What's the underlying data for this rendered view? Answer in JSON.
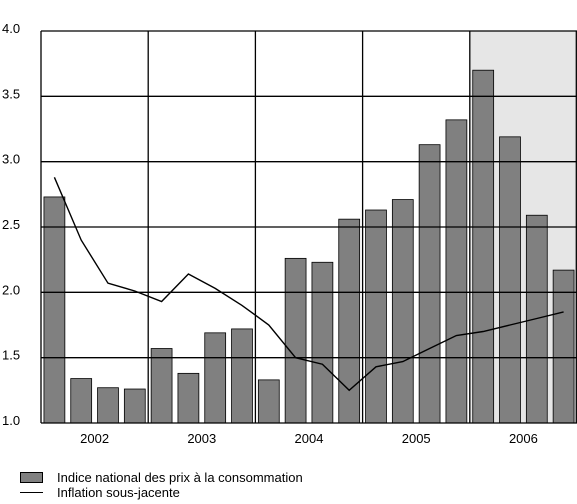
{
  "chart_data": {
    "type": "bar",
    "ylim": [
      1.0,
      4.0
    ],
    "yticks": [
      "1.0",
      "1.5",
      "2.0",
      "2.5",
      "3.0",
      "3.5",
      "4.0"
    ],
    "year_labels": [
      "2002",
      "2003",
      "2004",
      "2005",
      "2006"
    ],
    "shaded_region": {
      "from_quarter": 16,
      "to_quarter": 20
    },
    "colors": {
      "bar": "#808080",
      "line": "#000000",
      "shade": "#e6e6e6",
      "grid": "#000000"
    },
    "series": [
      {
        "name": "Indice national des prix à la consommation",
        "type": "bar",
        "values": [
          2.73,
          1.34,
          1.27,
          1.26,
          1.57,
          1.38,
          1.69,
          1.72,
          1.33,
          2.26,
          2.23,
          2.56,
          2.63,
          2.71,
          3.13,
          3.32,
          3.7,
          3.19,
          2.59,
          2.17
        ]
      },
      {
        "name": "Inflation sous-jacente",
        "type": "line",
        "values": [
          2.88,
          2.4,
          2.07,
          2.01,
          1.93,
          2.14,
          2.03,
          1.9,
          1.75,
          1.5,
          1.45,
          1.25,
          1.43,
          1.47,
          1.57,
          1.67,
          1.7,
          1.75,
          1.8,
          1.85
        ]
      }
    ]
  },
  "legend": {
    "items": [
      {
        "label": "Indice national des prix à la consommation",
        "icon": "bar-swatch"
      },
      {
        "label": "Inflation sous-jacente",
        "icon": "line-swatch"
      }
    ]
  }
}
